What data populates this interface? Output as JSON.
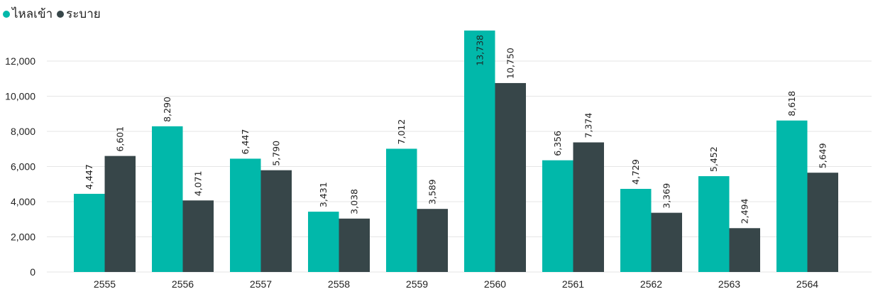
{
  "legend": [
    {
      "name": "ไหลเข้า",
      "color": "#01B8AA"
    },
    {
      "name": "ระบาย",
      "color": "#374649"
    }
  ],
  "chart_data": {
    "type": "bar",
    "categories": [
      "2555",
      "2556",
      "2557",
      "2558",
      "2559",
      "2560",
      "2561",
      "2562",
      "2563",
      "2564"
    ],
    "series": [
      {
        "name": "ไหลเข้า",
        "color": "#01B8AA",
        "values": [
          4447,
          8290,
          6447,
          3431,
          7012,
          13738,
          6356,
          4729,
          5452,
          8618
        ],
        "labels": [
          "4,447",
          "8,290",
          "6,447",
          "3,431",
          "7,012",
          "13,738",
          "6,356",
          "4,729",
          "5,452",
          "8,618"
        ]
      },
      {
        "name": "ระบาย",
        "color": "#374649",
        "values": [
          6601,
          4071,
          5790,
          3038,
          3589,
          10750,
          7374,
          3369,
          2494,
          5649
        ],
        "labels": [
          "6,601",
          "4,071",
          "5,790",
          "3,038",
          "3,589",
          "10,750",
          "7,374",
          "3,369",
          "2,494",
          "5,649"
        ]
      }
    ],
    "yticks": [
      0,
      2000,
      4000,
      6000,
      8000,
      10000,
      12000
    ],
    "ytick_labels": [
      "0",
      "2,000",
      "4,000",
      "6,000",
      "8,000",
      "10,000",
      "12,000"
    ],
    "ylim": [
      0,
      13738
    ],
    "grid": true,
    "legend_position": "top-left"
  }
}
